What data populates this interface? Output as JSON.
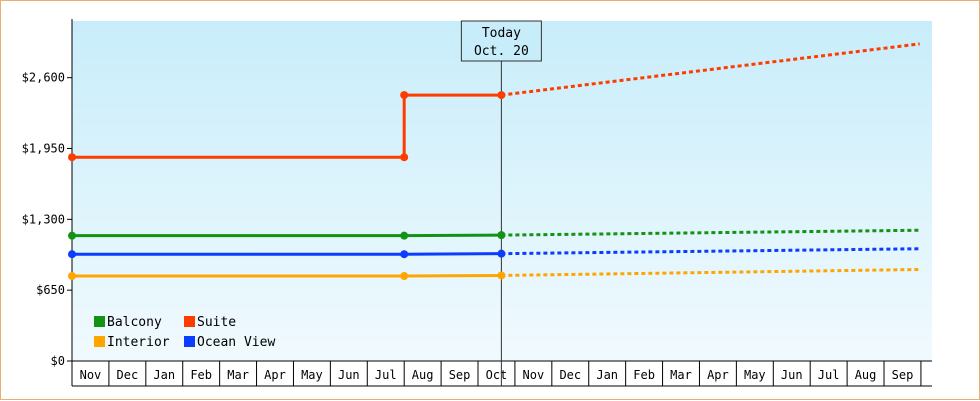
{
  "chart_data": {
    "type": "line",
    "title": "",
    "xlabel": "",
    "ylabel": "",
    "ylim": [
      0,
      3120
    ],
    "y_ticks": [
      "$0",
      "$650",
      "$1,300",
      "$1,950",
      "$2,600"
    ],
    "y_tick_values": [
      0,
      650,
      1300,
      1950,
      2600
    ],
    "x_tick_labels": [
      "Nov",
      "Dec",
      "Jan",
      "Feb",
      "Mar",
      "Apr",
      "May",
      "Jun",
      "Jul",
      "Aug",
      "Sep",
      "Oct",
      "Nov",
      "Dec",
      "Jan",
      "Feb",
      "Mar",
      "Apr",
      "May",
      "Jun",
      "Jul",
      "Aug",
      "Sep"
    ],
    "today": {
      "line1": "Today",
      "line2": "Oct. 20"
    },
    "grid": false,
    "legend_position": "bottom-left",
    "series": [
      {
        "name": "Balcony",
        "color": "#139313",
        "historical": [
          [
            "Nov 1",
            1150
          ],
          [
            "Aug 1",
            1150
          ],
          [
            "Oct 20",
            1155
          ]
        ],
        "projected": [
          [
            "Oct 20",
            1155
          ],
          [
            "Sep 30",
            1200
          ]
        ]
      },
      {
        "name": "Suite",
        "color": "#ff3c00",
        "historical": [
          [
            "Nov 1",
            1870
          ],
          [
            "Aug 1",
            1870
          ],
          [
            "Aug 1",
            2440
          ],
          [
            "Oct 20",
            2440
          ]
        ],
        "projected": [
          [
            "Oct 20",
            2440
          ],
          [
            "Sep 30",
            2910
          ]
        ]
      },
      {
        "name": "Interior",
        "color": "#ffa500",
        "historical": [
          [
            "Nov 1",
            780
          ],
          [
            "Aug 1",
            780
          ],
          [
            "Oct 20",
            785
          ]
        ],
        "projected": [
          [
            "Oct 20",
            785
          ],
          [
            "Sep 30",
            840
          ]
        ]
      },
      {
        "name": "Ocean View",
        "color": "#0b3cff",
        "historical": [
          [
            "Nov 1",
            980
          ],
          [
            "Aug 1",
            980
          ],
          [
            "Oct 20",
            985
          ]
        ],
        "projected": [
          [
            "Oct 20",
            985
          ],
          [
            "Sep 30",
            1030
          ]
        ]
      }
    ]
  }
}
